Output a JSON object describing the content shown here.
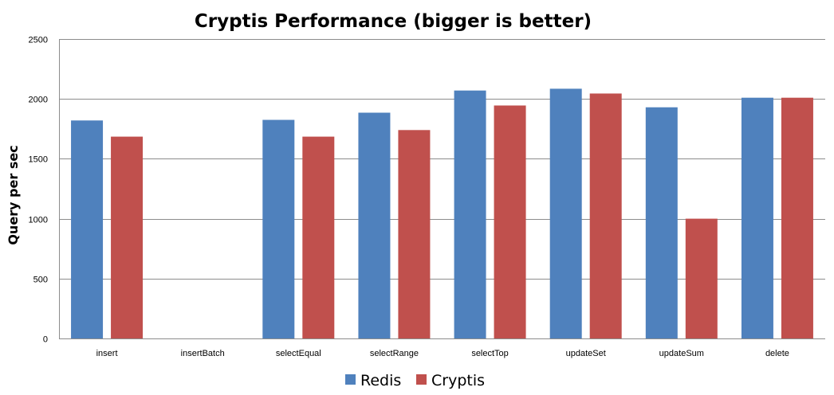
{
  "chart_data": {
    "type": "bar",
    "title": "Cryptis Performance (bigger is better)",
    "xlabel": "",
    "ylabel": "Query per sec",
    "ylim": [
      0,
      2500
    ],
    "yticks": [
      0,
      500,
      1000,
      1500,
      2000,
      2500
    ],
    "grid": true,
    "legend_position": "bottom",
    "categories": [
      "insert",
      "insertBatch",
      "selectEqual",
      "selectRange",
      "selectTop",
      "updateSet",
      "updateSum",
      "delete"
    ],
    "series": [
      {
        "name": "Redis",
        "color": "#4f81bd",
        "values": [
          1820,
          0,
          1825,
          1885,
          2070,
          2085,
          1930,
          2010
        ]
      },
      {
        "name": "Cryptis",
        "color": "#c0504d",
        "values": [
          1685,
          0,
          1685,
          1740,
          1945,
          2045,
          1000,
          2010
        ]
      }
    ]
  }
}
